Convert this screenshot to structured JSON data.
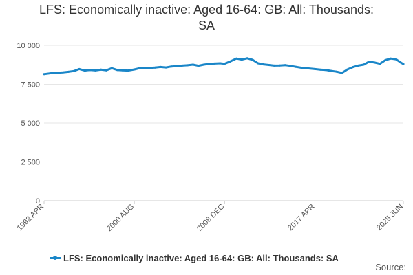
{
  "chart_data": {
    "type": "line",
    "title_lines": [
      "LFS: Economically inactive: Aged 16-64: GB: All: Thousands:",
      "SA"
    ],
    "x_tick_labels": [
      "1992 APR",
      "2000 AUG",
      "2008 DEC",
      "2017 APR",
      "2025 JUN"
    ],
    "x_tick_dates": [
      "1992-04",
      "2000-08",
      "2008-12",
      "2017-04",
      "2025-06"
    ],
    "xlim": [
      "1992-04",
      "2025-06"
    ],
    "y_tick_labels": [
      "0",
      "2 500",
      "5 000",
      "7 500",
      "10 000"
    ],
    "y_tick_values": [
      0,
      2500,
      5000,
      7500,
      10000
    ],
    "ylim": [
      0,
      10000
    ],
    "grid": true,
    "legend_position": "bottom",
    "colors": {
      "series": "#1a86c8",
      "grid": "#e6e6e6",
      "axis": "#cccccc",
      "text": "#333333"
    },
    "series": [
      {
        "name": "LFS: Economically inactive: Aged 16-64: GB: All: Thousands: SA",
        "x": [
          "1992-04",
          "1993-01",
          "1994-01",
          "1994-07",
          "1995-01",
          "1995-07",
          "1996-01",
          "1996-07",
          "1997-01",
          "1997-07",
          "1998-01",
          "1998-07",
          "1999-01",
          "1999-07",
          "2000-01",
          "2000-08",
          "2001-01",
          "2001-07",
          "2002-01",
          "2002-07",
          "2003-01",
          "2003-07",
          "2004-01",
          "2004-07",
          "2005-01",
          "2005-07",
          "2006-01",
          "2006-07",
          "2007-01",
          "2007-07",
          "2008-01",
          "2008-07",
          "2008-12",
          "2009-06",
          "2010-01",
          "2010-07",
          "2011-01",
          "2011-07",
          "2012-01",
          "2012-07",
          "2013-01",
          "2013-07",
          "2014-01",
          "2014-07",
          "2015-01",
          "2015-07",
          "2016-01",
          "2016-07",
          "2017-04",
          "2017-10",
          "2018-04",
          "2018-10",
          "2019-04",
          "2019-10",
          "2020-04",
          "2020-10",
          "2021-04",
          "2021-10",
          "2022-04",
          "2022-10",
          "2023-04",
          "2023-10",
          "2024-04",
          "2024-10",
          "2025-03",
          "2025-06"
        ],
        "values": [
          8150,
          8220,
          8260,
          8300,
          8350,
          8480,
          8380,
          8420,
          8390,
          8440,
          8400,
          8530,
          8420,
          8400,
          8380,
          8450,
          8520,
          8560,
          8550,
          8570,
          8610,
          8580,
          8640,
          8660,
          8700,
          8720,
          8760,
          8690,
          8760,
          8810,
          8830,
          8850,
          8820,
          8960,
          9150,
          9090,
          9170,
          9070,
          8850,
          8780,
          8740,
          8700,
          8710,
          8730,
          8680,
          8620,
          8560,
          8530,
          8480,
          8440,
          8420,
          8360,
          8310,
          8230,
          8450,
          8600,
          8700,
          8760,
          8950,
          8900,
          8820,
          9050,
          9150,
          9100,
          8900,
          8800
        ]
      }
    ]
  },
  "source_label": "Source:"
}
